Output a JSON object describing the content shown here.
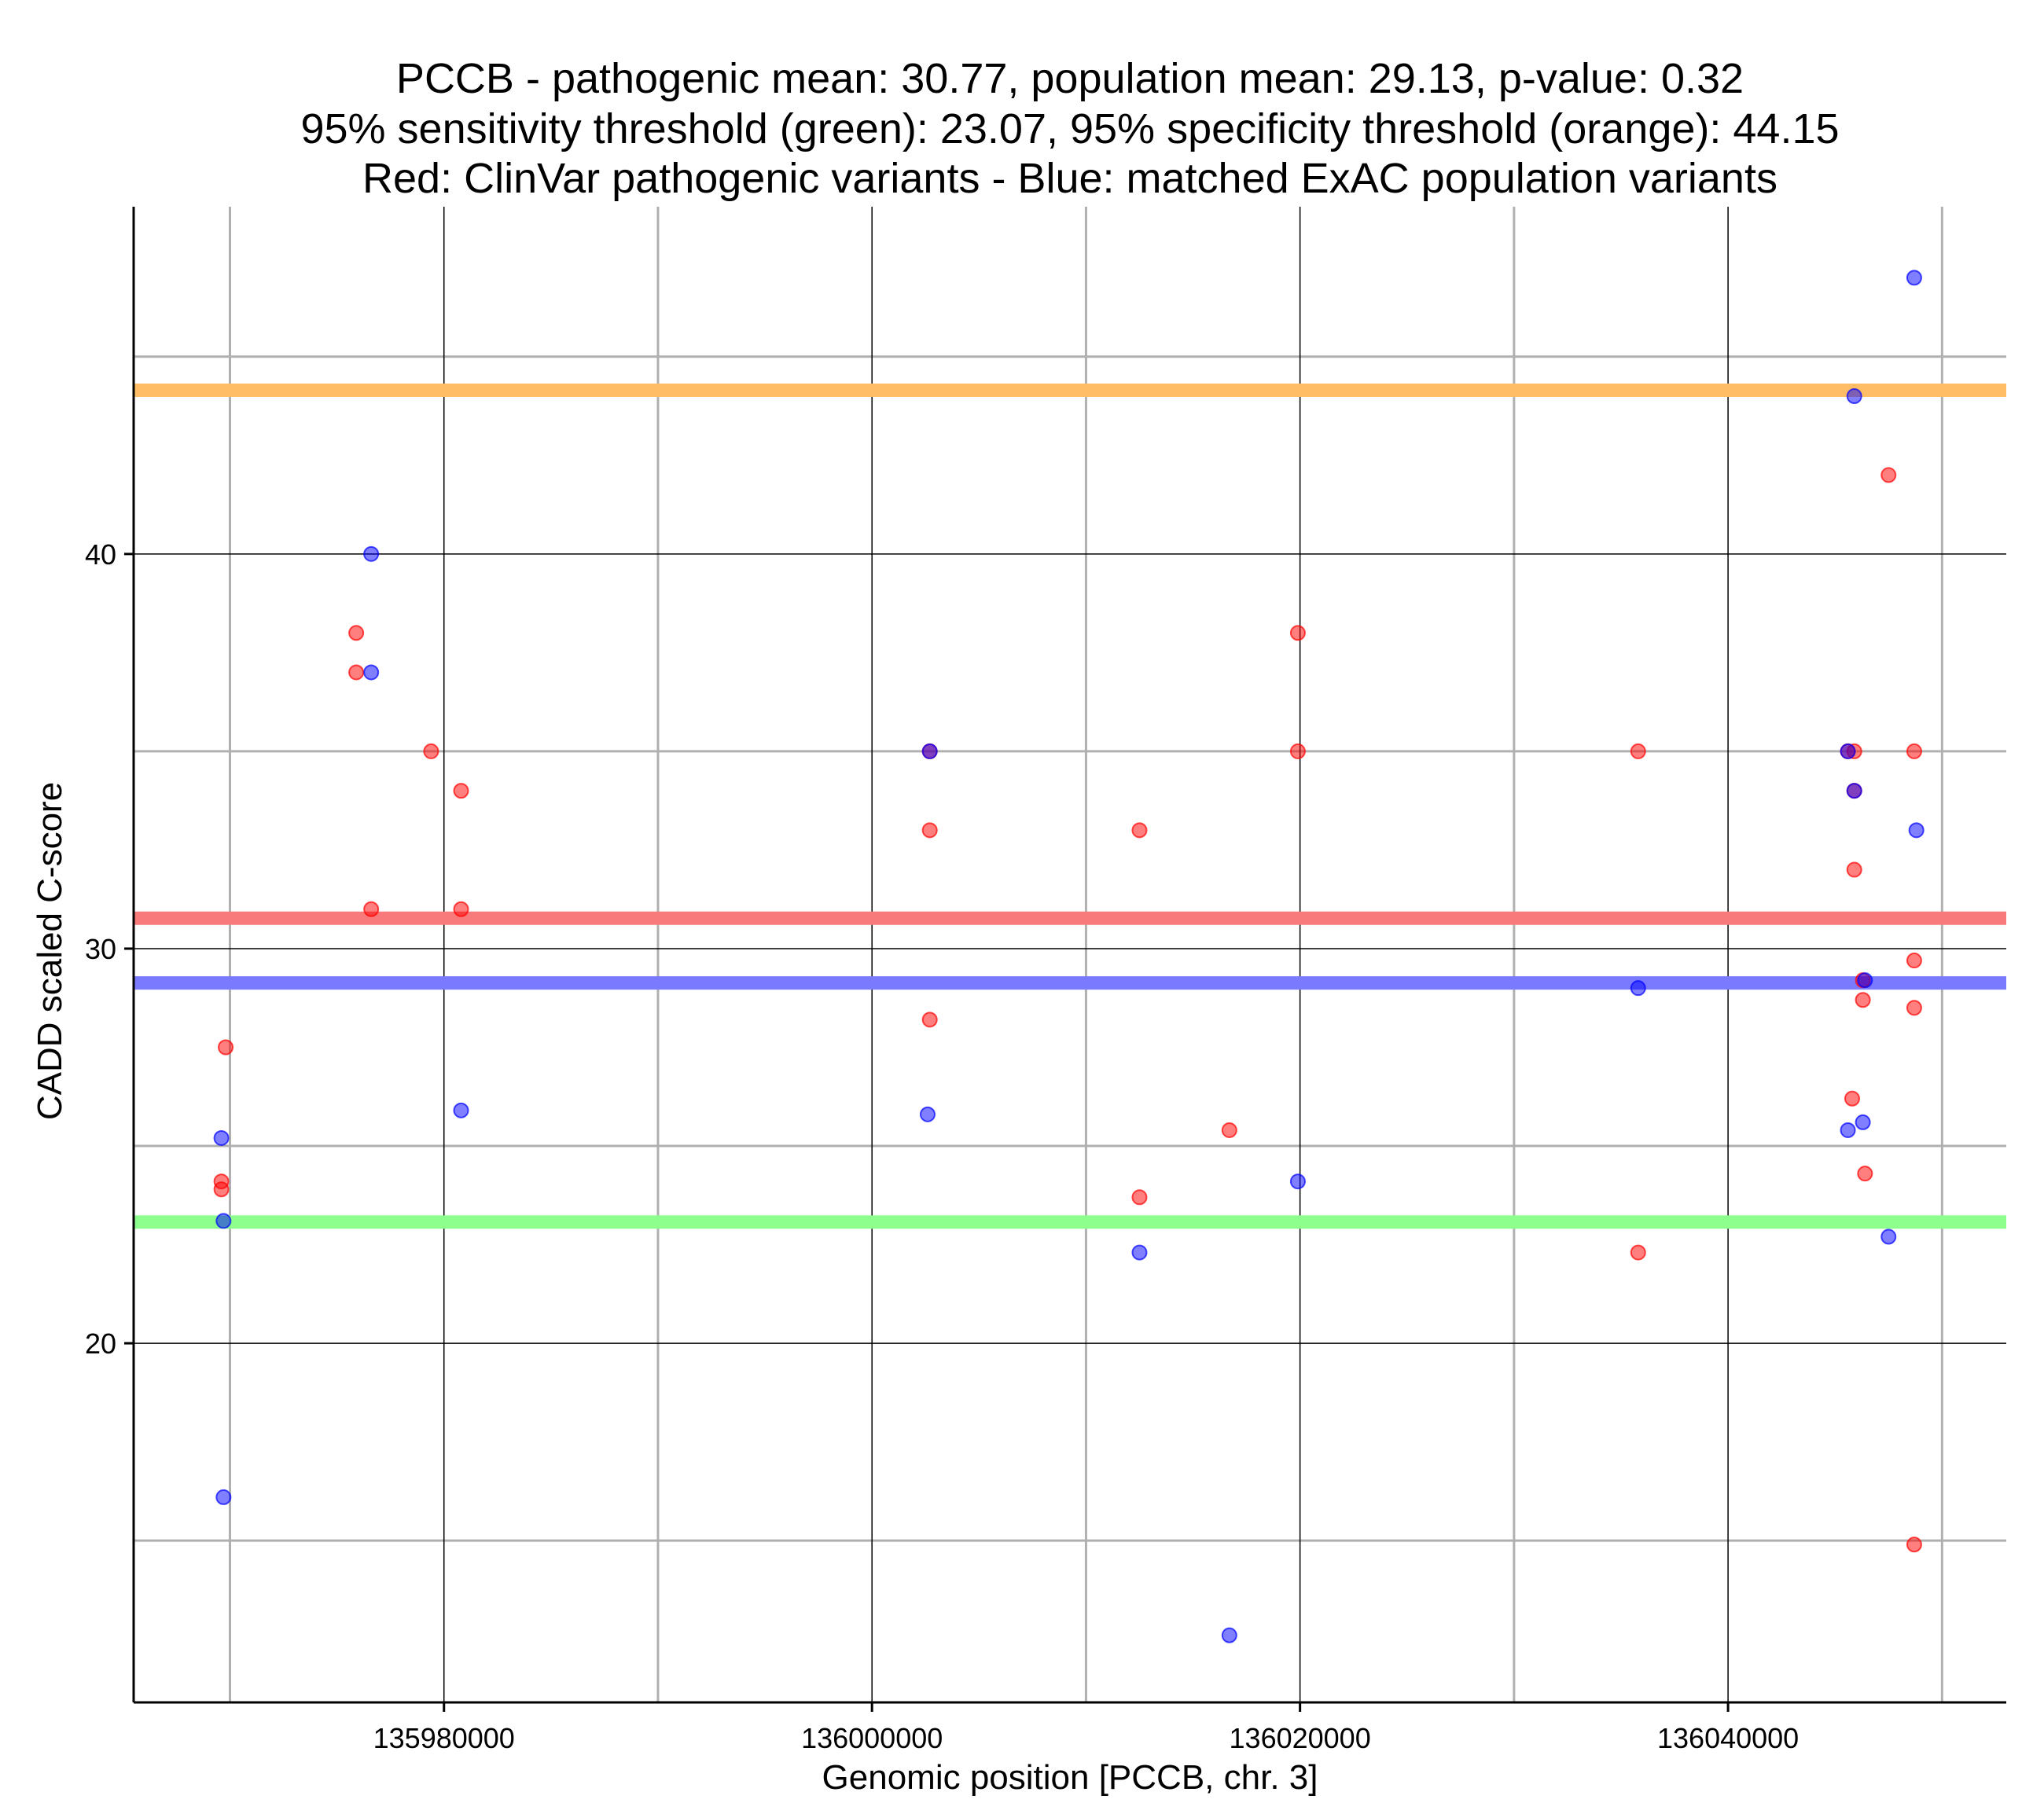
{
  "chart_data": {
    "type": "scatter",
    "title_lines": [
      "PCCB - pathogenic mean: 30.77, population mean: 29.13, p-value: 0.32",
      "95% sensitivity threshold (green): 23.07, 95% specificity threshold (orange): 44.15",
      "Red: ClinVar pathogenic variants - Blue: matched ExAC population variants"
    ],
    "xlabel": "Genomic position [PCCB, chr. 3]",
    "ylabel": "CADD scaled C-score",
    "xlim": [
      135965500,
      136053000
    ],
    "ylim": [
      10.9,
      48.8
    ],
    "x_major_ticks": [
      135980000,
      136000000,
      136020000,
      136040000
    ],
    "x_major_tick_labels": [
      "135980000",
      "136000000",
      "136020000",
      "136040000"
    ],
    "x_minor_gridlines": [
      135970000,
      135990000,
      136010000,
      136030000,
      136050000
    ],
    "y_major_ticks": [
      20,
      30,
      40
    ],
    "y_major_tick_labels": [
      "20",
      "30",
      "40"
    ],
    "y_minor_gridlines": [
      15,
      25,
      35,
      45
    ],
    "reference_lines": [
      {
        "name": "95% specificity threshold",
        "value": 44.15,
        "color": "#ffbe66"
      },
      {
        "name": "pathogenic mean",
        "value": 30.77,
        "color": "#f87a7a"
      },
      {
        "name": "population mean",
        "value": 29.13,
        "color": "#7a7aff"
      },
      {
        "name": "95% sensitivity threshold",
        "value": 23.07,
        "color": "#8cff8c"
      }
    ],
    "series": [
      {
        "name": "ClinVar pathogenic variants",
        "color": "#ff0000",
        "points": [
          [
            135969800,
            27.5
          ],
          [
            135969600,
            24.1
          ],
          [
            135969600,
            23.9
          ],
          [
            135975900,
            38.0
          ],
          [
            135975900,
            37.0
          ],
          [
            135976600,
            31.0
          ],
          [
            135979400,
            35.0
          ],
          [
            135980800,
            34.0
          ],
          [
            135980800,
            31.0
          ],
          [
            136002700,
            35.0
          ],
          [
            136002700,
            33.0
          ],
          [
            136002700,
            28.2
          ],
          [
            136012500,
            33.0
          ],
          [
            136012500,
            23.7
          ],
          [
            136016700,
            25.4
          ],
          [
            136019900,
            38.0
          ],
          [
            136019900,
            35.0
          ],
          [
            136035800,
            35.0
          ],
          [
            136035800,
            22.3
          ],
          [
            136045600,
            35.0
          ],
          [
            136045900,
            35.0
          ],
          [
            136045900,
            34.0
          ],
          [
            136045900,
            32.0
          ],
          [
            136045800,
            26.2
          ],
          [
            136046300,
            29.2
          ],
          [
            136046300,
            28.7
          ],
          [
            136046400,
            24.3
          ],
          [
            136047500,
            42.0
          ],
          [
            136048700,
            35.0
          ],
          [
            136048700,
            29.7
          ],
          [
            136048700,
            28.5
          ],
          [
            136048700,
            14.9
          ]
        ]
      },
      {
        "name": "matched ExAC population variants",
        "color": "#0000ff",
        "points": [
          [
            135969600,
            25.2
          ],
          [
            135969700,
            23.1
          ],
          [
            135969700,
            16.1
          ],
          [
            135976600,
            40.0
          ],
          [
            135976600,
            37.0
          ],
          [
            135980800,
            25.9
          ],
          [
            136002700,
            35.0
          ],
          [
            136002600,
            25.8
          ],
          [
            136012500,
            22.3
          ],
          [
            136016700,
            12.6
          ],
          [
            136019900,
            24.1
          ],
          [
            136035800,
            29.0
          ],
          [
            136045600,
            35.0
          ],
          [
            136045600,
            25.4
          ],
          [
            136045900,
            44.0
          ],
          [
            136045900,
            34.0
          ],
          [
            136046300,
            25.6
          ],
          [
            136046400,
            29.2
          ],
          [
            136047500,
            22.7
          ],
          [
            136048700,
            47.0
          ],
          [
            136048800,
            33.0
          ]
        ]
      }
    ]
  }
}
